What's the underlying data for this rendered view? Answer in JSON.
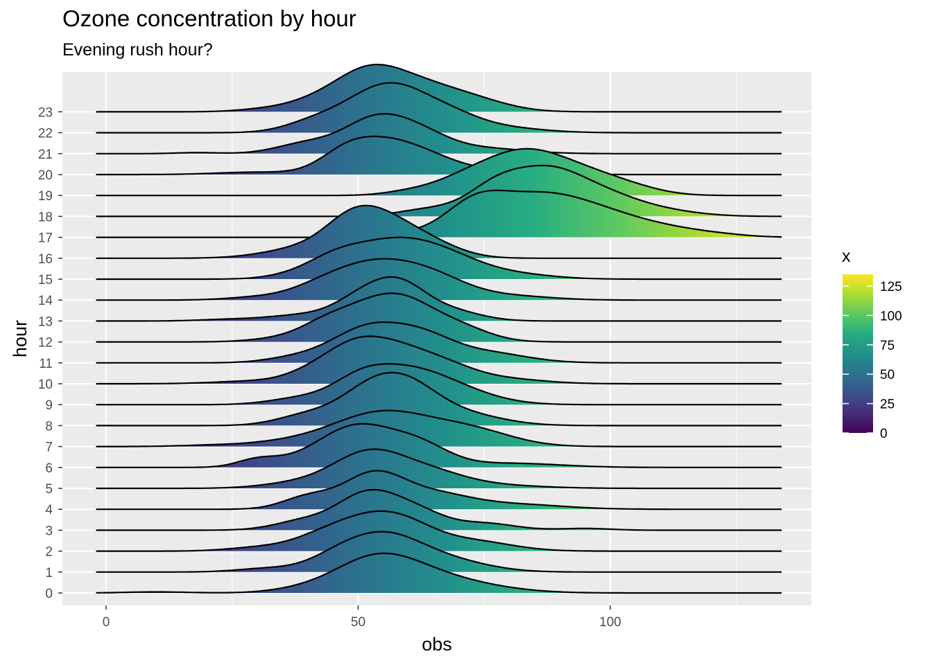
{
  "chart_data": {
    "type": "ridgeline",
    "title": "Ozone concentration by hour",
    "subtitle": "Evening rush hour?",
    "xlabel": "obs",
    "ylabel": "hour",
    "xlim": [
      -2,
      134
    ],
    "x_ticks": [
      0,
      50,
      100
    ],
    "x_tick_labels": [
      "0",
      "50",
      "100"
    ],
    "categories": [
      "0",
      "1",
      "2",
      "3",
      "4",
      "5",
      "6",
      "7",
      "8",
      "9",
      "10",
      "11",
      "12",
      "13",
      "14",
      "15",
      "16",
      "17",
      "18",
      "19",
      "20",
      "21",
      "22",
      "23"
    ],
    "legend": {
      "title": "x",
      "placement": "right",
      "range": [
        0,
        135
      ],
      "ticks": [
        0,
        25,
        50,
        75,
        100,
        125
      ],
      "tick_labels": [
        "0",
        "25",
        "50",
        "75",
        "100",
        "125"
      ],
      "colors": [
        "#440154",
        "#472D7B",
        "#3B528B",
        "#2C728E",
        "#21908C",
        "#27AD81",
        "#5DC863",
        "#AADC32",
        "#FDE725"
      ]
    },
    "series": [
      {
        "hour": "0",
        "peaks": [
          [
            53,
            8,
            0.6
          ],
          [
            57,
            10,
            0.5
          ],
          [
            70,
            10,
            0.22
          ],
          [
            10,
            6,
            0.03
          ],
          [
            38,
            6,
            0.06
          ]
        ]
      },
      {
        "hour": "1",
        "peaks": [
          [
            53,
            8,
            0.8
          ],
          [
            57,
            7,
            0.3
          ],
          [
            68,
            8,
            0.3
          ],
          [
            32,
            6,
            0.1
          ],
          [
            45,
            5,
            0.15
          ]
        ]
      },
      {
        "hour": "2",
        "peaks": [
          [
            52,
            7,
            0.85
          ],
          [
            60,
            6,
            0.45
          ],
          [
            72,
            8,
            0.3
          ],
          [
            30,
            6,
            0.1
          ],
          [
            42,
            6,
            0.3
          ]
        ]
      },
      {
        "hour": "3",
        "peaks": [
          [
            50,
            5,
            0.7
          ],
          [
            56,
            5,
            0.6
          ],
          [
            63,
            5,
            0.4
          ],
          [
            75,
            6,
            0.2
          ],
          [
            40,
            6,
            0.3
          ],
          [
            95,
            5,
            0.05
          ]
        ]
      },
      {
        "hour": "4",
        "peaks": [
          [
            53,
            6,
            1.0
          ],
          [
            65,
            7,
            0.4
          ],
          [
            40,
            5,
            0.35
          ],
          [
            80,
            10,
            0.15
          ]
        ]
      },
      {
        "hour": "5",
        "peaks": [
          [
            52,
            7,
            1.0
          ],
          [
            64,
            7,
            0.4
          ],
          [
            38,
            7,
            0.15
          ],
          [
            75,
            10,
            0.1
          ]
        ]
      },
      {
        "hour": "6",
        "peaks": [
          [
            50,
            7,
            1.1
          ],
          [
            62,
            6,
            0.6
          ],
          [
            30,
            4,
            0.2
          ],
          [
            40,
            7,
            0.2
          ],
          [
            80,
            10,
            0.12
          ]
        ]
      },
      {
        "hour": "7",
        "peaks": [
          [
            55,
            10,
            1.0
          ],
          [
            73,
            8,
            0.4
          ],
          [
            20,
            6,
            0.03
          ],
          [
            35,
            8,
            0.1
          ]
        ]
      },
      {
        "hour": "8",
        "peaks": [
          [
            52,
            6,
            0.9
          ],
          [
            60,
            6,
            0.9
          ],
          [
            70,
            8,
            0.35
          ],
          [
            40,
            6,
            0.3
          ]
        ]
      },
      {
        "hour": "9",
        "peaks": [
          [
            58,
            9,
            1.0
          ],
          [
            50,
            5,
            0.3
          ],
          [
            70,
            8,
            0.25
          ],
          [
            38,
            6,
            0.15
          ]
        ]
      },
      {
        "hour": "10",
        "peaks": [
          [
            49,
            6,
            1.0
          ],
          [
            58,
            6,
            0.75
          ],
          [
            67,
            6,
            0.45
          ],
          [
            30,
            8,
            0.08
          ],
          [
            40,
            5,
            0.2
          ],
          [
            78,
            8,
            0.15
          ]
        ]
      },
      {
        "hour": "11",
        "peaks": [
          [
            52,
            7,
            1.0
          ],
          [
            63,
            6,
            0.6
          ],
          [
            75,
            8,
            0.3
          ],
          [
            38,
            6,
            0.15
          ]
        ]
      },
      {
        "hour": "12",
        "peaks": [
          [
            52,
            7,
            0.9
          ],
          [
            60,
            6,
            0.75
          ],
          [
            70,
            6,
            0.4
          ],
          [
            35,
            6,
            0.1
          ],
          [
            43,
            5,
            0.3
          ]
        ]
      },
      {
        "hour": "13",
        "peaks": [
          [
            52,
            6,
            0.8
          ],
          [
            59,
            5,
            0.7
          ],
          [
            68,
            6,
            0.3
          ],
          [
            38,
            6,
            0.15
          ],
          [
            25,
            6,
            0.05
          ]
        ]
      },
      {
        "hour": "14",
        "peaks": [
          [
            53,
            8,
            1.0
          ],
          [
            65,
            7,
            0.55
          ],
          [
            42,
            6,
            0.25
          ],
          [
            30,
            6,
            0.08
          ],
          [
            80,
            8,
            0.12
          ]
        ]
      },
      {
        "hour": "15",
        "peaks": [
          [
            57,
            8,
            1.0
          ],
          [
            45,
            6,
            0.5
          ],
          [
            68,
            7,
            0.45
          ],
          [
            80,
            8,
            0.15
          ],
          [
            35,
            5,
            0.05
          ]
        ]
      },
      {
        "hour": "16",
        "peaks": [
          [
            54,
            7,
            1.15
          ],
          [
            48,
            5,
            0.4
          ],
          [
            40,
            8,
            0.3
          ],
          [
            65,
            6,
            0.3
          ]
        ]
      },
      {
        "hour": "17",
        "peaks": [
          [
            73,
            6,
            0.9
          ],
          [
            85,
            8,
            1.0
          ],
          [
            97,
            8,
            0.6
          ],
          [
            110,
            8,
            0.25
          ],
          [
            60,
            5,
            0.1
          ],
          [
            122,
            6,
            0.05
          ]
        ]
      },
      {
        "hour": "18",
        "peaks": [
          [
            78,
            6,
            0.95
          ],
          [
            88,
            6,
            0.95
          ],
          [
            97,
            7,
            0.6
          ],
          [
            64,
            6,
            0.2
          ],
          [
            108,
            8,
            0.2
          ]
        ]
      },
      {
        "hour": "19",
        "peaks": [
          [
            82,
            8,
            1.15
          ],
          [
            95,
            8,
            0.55
          ],
          [
            70,
            6,
            0.3
          ],
          [
            60,
            5,
            0.1
          ],
          [
            105,
            6,
            0.1
          ]
        ]
      },
      {
        "hour": "20",
        "peaks": [
          [
            55,
            7,
            0.9
          ],
          [
            47,
            5,
            0.4
          ],
          [
            65,
            6,
            0.3
          ],
          [
            30,
            8,
            0.07
          ],
          [
            78,
            8,
            0.12
          ]
        ]
      },
      {
        "hour": "21",
        "peaks": [
          [
            53,
            6,
            0.9
          ],
          [
            62,
            6,
            0.55
          ],
          [
            40,
            6,
            0.3
          ],
          [
            18,
            4,
            0.03
          ],
          [
            75,
            8,
            0.15
          ]
        ]
      },
      {
        "hour": "22",
        "peaks": [
          [
            52,
            6,
            0.75
          ],
          [
            59,
            6,
            0.85
          ],
          [
            68,
            6,
            0.45
          ],
          [
            42,
            6,
            0.35
          ],
          [
            78,
            8,
            0.15
          ]
        ]
      },
      {
        "hour": "23",
        "peaks": [
          [
            52,
            7,
            1.15
          ],
          [
            63,
            7,
            0.55
          ],
          [
            73,
            7,
            0.3
          ],
          [
            40,
            6,
            0.2
          ],
          [
            30,
            5,
            0.05
          ]
        ]
      }
    ]
  }
}
